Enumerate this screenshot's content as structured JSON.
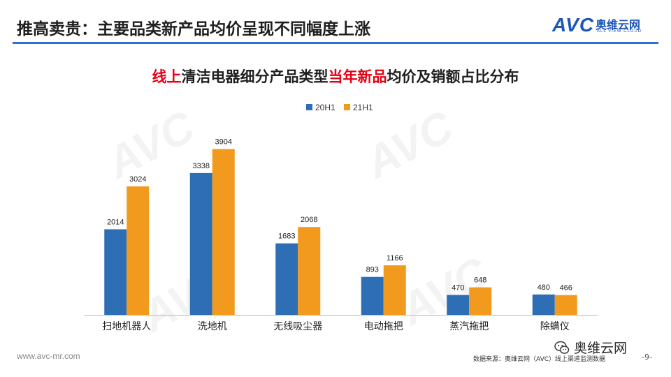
{
  "header": {
    "title": "推高卖贵：主要品类新产品均价呈现不同幅度上涨",
    "logo_avc": "AVC",
    "logo_cn": "奥维云网",
    "logo_en": "ALL VIEW CLOUD"
  },
  "chart_title": {
    "part1_red": "线上",
    "part2": "清洁电器细分产品类型",
    "part3_red": "当年新品",
    "part4": "均价及销额占比分布"
  },
  "chart_data": {
    "type": "bar",
    "categories": [
      "扫地机器人",
      "洗地机",
      "无线吸尘器",
      "电动拖把",
      "蒸汽拖把",
      "除螨仪"
    ],
    "series": [
      {
        "name": "20H1",
        "values": [
          2014,
          3338,
          1683,
          893,
          470,
          480
        ],
        "color": "#2e6eb5"
      },
      {
        "name": "21H1",
        "values": [
          3024,
          3904,
          2068,
          1166,
          648,
          466
        ],
        "color": "#f29a1e"
      }
    ],
    "ylim": [
      0,
      4700
    ],
    "legend_position": "top",
    "grid": false
  },
  "footer": {
    "url": "www.avc-mr.com",
    "source": "数据来源：奥维云网（AVC）线上渠道监测数据",
    "page": "-9-",
    "wechat_name": "奥维云网"
  },
  "colors": {
    "accent": "#2e6fd0",
    "highlight": "#e60012"
  }
}
